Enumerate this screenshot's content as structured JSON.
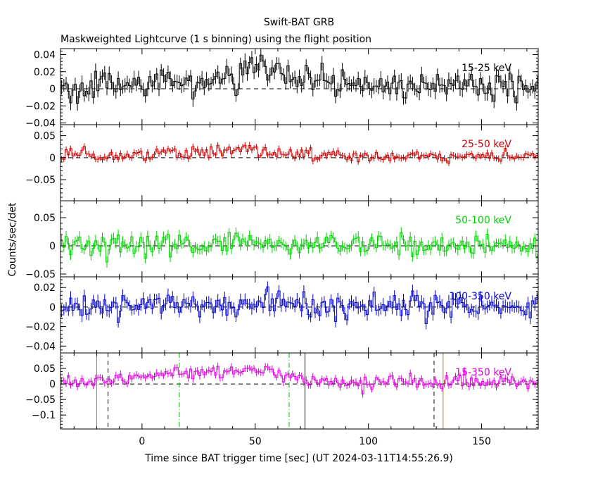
{
  "chart_data": {
    "type": "line",
    "title": "Swift-BAT GRB",
    "subtitle": "Maskweighted Lightcurve (1 s binning) using the flight position",
    "xlabel": "Time since BAT trigger time [sec] (UT 2024-03-11T14:55:26.9)",
    "ylabel": "Counts/sec/det",
    "xlim": [
      -36,
      175
    ],
    "xticks": [
      0,
      50,
      100,
      150
    ],
    "panels": [
      {
        "name": "15-25 keV",
        "color": "#000000",
        "ylim": [
          -0.042,
          0.047
        ],
        "yticks": [
          -0.04,
          -0.02,
          0,
          0.02,
          0.04
        ],
        "ytick_labels": [
          "−0.04",
          "−0.02",
          "0",
          "0.02",
          "0.04"
        ],
        "knots_x": [
          -36,
          -20,
          -10,
          0,
          10,
          14,
          20,
          30,
          38,
          45,
          48,
          50,
          54,
          58,
          64,
          72,
          82,
          95,
          110,
          125,
          135,
          150,
          165,
          175
        ],
        "knots_y": [
          0.0,
          0.002,
          0.003,
          0.004,
          0.008,
          0.015,
          0.009,
          0.011,
          0.014,
          0.018,
          0.026,
          0.028,
          0.026,
          0.012,
          0.014,
          0.008,
          0.007,
          0.005,
          0.002,
          0.002,
          0.004,
          0.002,
          0.0,
          0.002
        ],
        "noise": 0.008
      },
      {
        "name": "25-50 keV",
        "color": "#cc0000",
        "ylim": [
          -0.098,
          0.075
        ],
        "yticks": [
          -0.05,
          0,
          0.05
        ],
        "ytick_labels": [
          "−0.05",
          "0",
          "0.05"
        ],
        "knots_x": [
          -36,
          -10,
          10,
          20,
          30,
          38,
          45,
          50,
          55,
          65,
          80,
          100,
          130,
          160,
          175
        ],
        "knots_y": [
          0.005,
          0.006,
          0.009,
          0.011,
          0.012,
          0.016,
          0.02,
          0.018,
          0.013,
          0.01,
          0.004,
          0.002,
          0.004,
          0.004,
          0.005
        ],
        "noise": 0.007
      },
      {
        "name": "50-100 keV",
        "color": "#00d000",
        "ylim": [
          -0.055,
          0.08
        ],
        "yticks": [
          -0.05,
          0,
          0.05
        ],
        "ytick_labels": [
          "−0.05",
          "0",
          "0.05"
        ],
        "knots_x": [
          -36,
          0,
          50,
          100,
          150,
          175
        ],
        "knots_y": [
          0.002,
          0.004,
          0.003,
          0.002,
          0.0,
          0.001
        ],
        "noise": 0.009
      },
      {
        "name": "100-350 keV",
        "color": "#0000cc",
        "ylim": [
          -0.047,
          0.031
        ],
        "yticks": [
          -0.04,
          -0.02,
          0,
          0.02
        ],
        "ytick_labels": [
          "−0.04",
          "−0.02",
          "0",
          "0.02"
        ],
        "knots_x": [
          -36,
          0,
          50,
          100,
          150,
          175
        ],
        "knots_y": [
          0.0,
          0.001,
          0.002,
          0.001,
          0.0,
          0.0
        ],
        "noise": 0.006
      },
      {
        "name": "15-350 keV",
        "color": "#dd00dd",
        "ylim": [
          -0.145,
          0.1
        ],
        "yticks": [
          -0.1,
          -0.05,
          0,
          0.05
        ],
        "ytick_labels": [
          "−0.1",
          "−0.05",
          "0",
          "0.05"
        ],
        "knots_x": [
          -36,
          -20,
          -10,
          0,
          10,
          14,
          20,
          30,
          38,
          45,
          50,
          54,
          60,
          66,
          72,
          82,
          95,
          110,
          125,
          140,
          160,
          175
        ],
        "knots_y": [
          0.005,
          0.01,
          0.015,
          0.025,
          0.03,
          0.035,
          0.03,
          0.035,
          0.045,
          0.05,
          0.045,
          0.05,
          0.03,
          0.025,
          0.012,
          0.008,
          0.006,
          0.006,
          0.006,
          0.008,
          0.006,
          0.006
        ],
        "noise": 0.011
      }
    ],
    "vertical_lines": [
      {
        "x": -20,
        "color": "#e07000",
        "style": "solid"
      },
      {
        "x": -15,
        "color": "#000000",
        "style": "dashed"
      },
      {
        "x": 16.5,
        "color": "#00c000",
        "style": "dashdot"
      },
      {
        "x": 65,
        "color": "#00c000",
        "style": "dashdot"
      },
      {
        "x": 72,
        "color": "#0000aa",
        "style": "solid"
      },
      {
        "x": 129,
        "color": "#000000",
        "style": "dashed"
      },
      {
        "x": 133,
        "color": "#e07000",
        "style": "solid"
      }
    ]
  }
}
